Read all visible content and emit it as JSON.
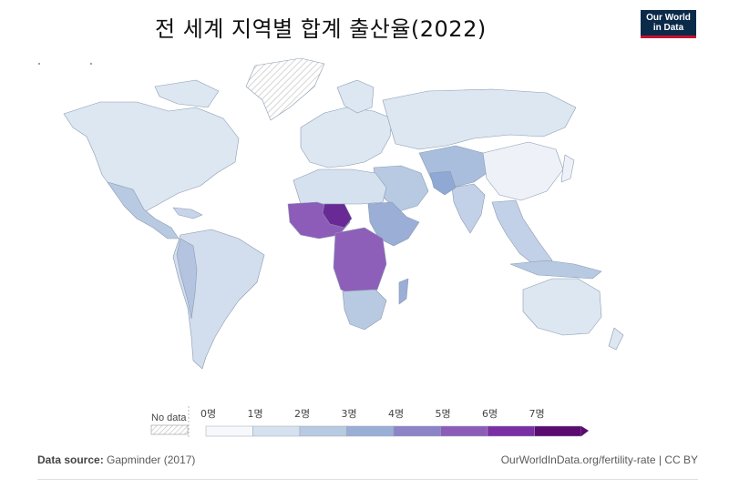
{
  "title": "전 세계 지역별 합계 출산율(2022)",
  "logo": {
    "line1": "Our World",
    "line2": "in Data"
  },
  "legend": {
    "no_data_label": "No data",
    "ticks": [
      "0명",
      "1명",
      "2명",
      "3명",
      "4명",
      "5명",
      "6명",
      "7명"
    ],
    "bins": [
      "#f7f8fc",
      "#d6e1ef",
      "#b8c9e2",
      "#9aaed6",
      "#8b84c6",
      "#8d5cb8",
      "#7a2fa4",
      "#5b0a70"
    ]
  },
  "footer": {
    "source_label": "Data source:",
    "source_value": "Gapminder (2017)",
    "url": "OurWorldInData.org/fertility-rate | CC BY"
  },
  "colors": {
    "low": "#dde7f2",
    "mid": "#a9bddc",
    "high": "#8e5fb9",
    "very_high": "#6a2a96",
    "no_data_hatch": "#c8c8c8",
    "border": "#8a9bb0"
  }
}
